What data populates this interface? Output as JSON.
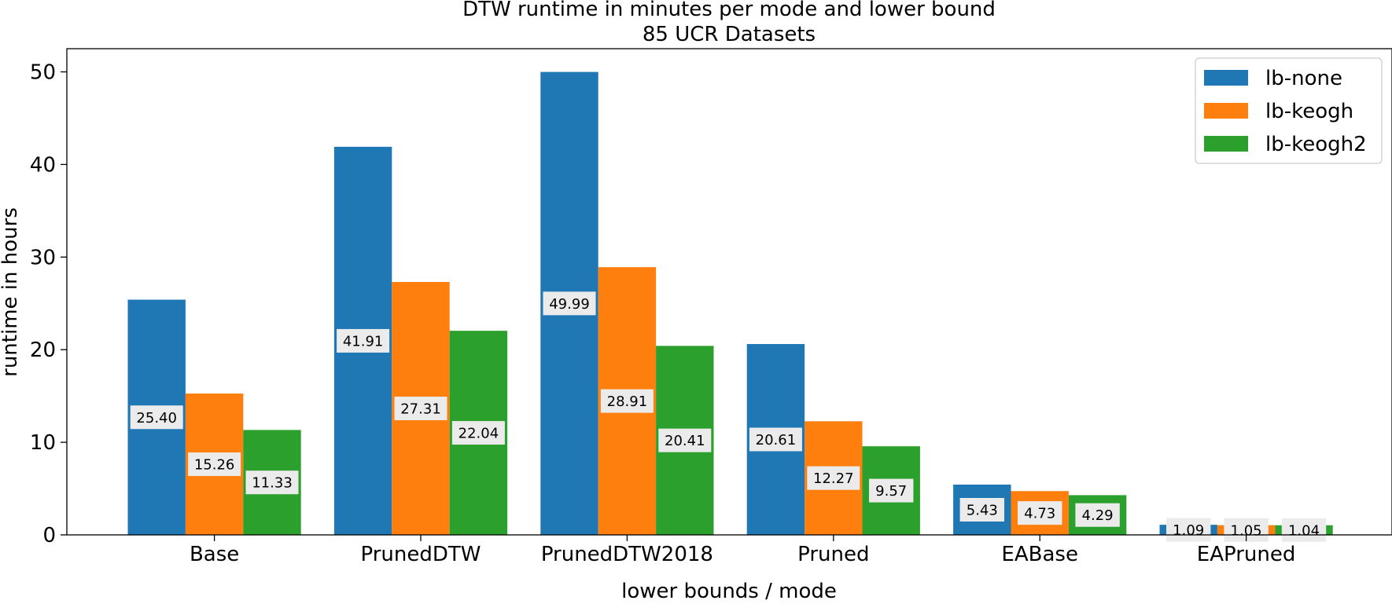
{
  "chart_data": {
    "type": "bar",
    "title": "DTW runtime in minutes per mode and lower bound",
    "subtitle": "85 UCR Datasets",
    "xlabel": "lower bounds / mode",
    "ylabel": "runtime in hours",
    "ylim": [
      0,
      52.5
    ],
    "yticks": [
      0,
      10,
      20,
      30,
      40,
      50
    ],
    "grid": false,
    "legend_position": "top-right",
    "categories": [
      "Base",
      "PrunedDTW",
      "PrunedDTW2018",
      "Pruned",
      "EABase",
      "EAPruned"
    ],
    "series": [
      {
        "name": "lb-none",
        "color": "#1f77b4",
        "values": [
          25.4,
          41.91,
          49.99,
          20.61,
          5.43,
          1.09
        ],
        "labels": [
          "25.40",
          "41.91",
          "49.99",
          "20.61",
          "5.43",
          "1.09"
        ]
      },
      {
        "name": "lb-keogh",
        "color": "#ff7f0e",
        "values": [
          15.26,
          27.31,
          28.91,
          12.27,
          4.73,
          1.05
        ],
        "labels": [
          "15.26",
          "27.31",
          "28.91",
          "12.27",
          "4.73",
          "1.05"
        ]
      },
      {
        "name": "lb-keogh2",
        "color": "#2ca02c",
        "values": [
          11.33,
          22.04,
          20.41,
          9.57,
          4.29,
          1.04
        ],
        "labels": [
          "11.33",
          "22.04",
          "20.41",
          "9.57",
          "4.29",
          "1.04"
        ]
      }
    ]
  }
}
